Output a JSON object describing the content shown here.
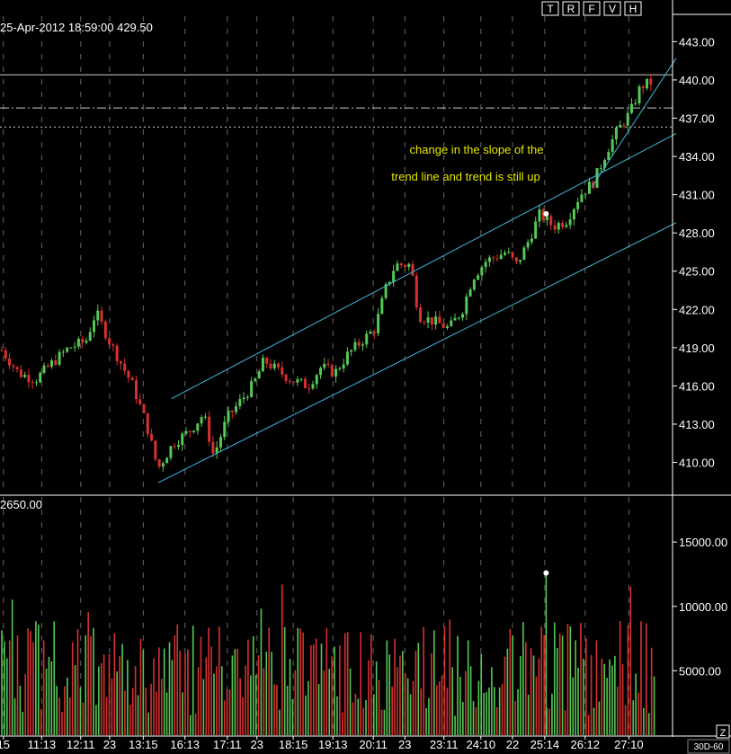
{
  "header": {
    "info": "25-Apr-2012 18:59:00 429.50",
    "buttons": [
      "T",
      "R",
      "F",
      "V",
      "H"
    ]
  },
  "annotation": {
    "line1": "change in the slope of the",
    "line2": "trend line and trend is still up"
  },
  "colors": {
    "background": "#000000",
    "up": "#55c855",
    "down": "#d83030",
    "trendline": "#3fb8d8",
    "annotation": "#e8e800",
    "text": "#ffffff",
    "grid": "#666666"
  },
  "chart_data": [
    {
      "type": "candlestick",
      "title": "",
      "ylim": [
        407.5,
        445.0
      ],
      "y_ticks": [
        "443.00",
        "440.00",
        "437.00",
        "434.00",
        "431.00",
        "428.00",
        "425.00",
        "422.00",
        "419.00",
        "416.00",
        "413.00",
        "410.00"
      ],
      "y_tick_values": [
        443,
        440,
        437,
        434,
        431,
        428,
        425,
        422,
        419,
        416,
        413,
        410
      ],
      "horizontal_levels": [
        {
          "value": 440.4,
          "style": "solid"
        },
        {
          "value": 437.8,
          "style": "dash-dot"
        },
        {
          "value": 436.3,
          "style": "dotted"
        }
      ],
      "last_marker_value": 429.5,
      "trend_lines": [
        {
          "name": "upper channel",
          "from": [
            0.255,
            415.0
          ],
          "to": [
            1.0,
            435.8
          ]
        },
        {
          "name": "lower channel",
          "from": [
            0.235,
            408.4
          ],
          "to": [
            1.0,
            428.8
          ]
        },
        {
          "name": "steep trend",
          "from": [
            0.88,
            431.6
          ],
          "to": [
            1.0,
            441.7
          ]
        }
      ],
      "price_anchors": [
        [
          0.0,
          418.8
        ],
        [
          0.025,
          417.0
        ],
        [
          0.05,
          416.5
        ],
        [
          0.075,
          417.8
        ],
        [
          0.1,
          419.0
        ],
        [
          0.125,
          419.5
        ],
        [
          0.14,
          421.8
        ],
        [
          0.16,
          419.5
        ],
        [
          0.175,
          418.0
        ],
        [
          0.195,
          416.0
        ],
        [
          0.215,
          413.0
        ],
        [
          0.232,
          409.5
        ],
        [
          0.255,
          411.5
        ],
        [
          0.28,
          412.5
        ],
        [
          0.3,
          413.8
        ],
        [
          0.315,
          410.5
        ],
        [
          0.335,
          413.5
        ],
        [
          0.355,
          414.8
        ],
        [
          0.375,
          416.2
        ],
        [
          0.39,
          418.0
        ],
        [
          0.41,
          417.2
        ],
        [
          0.43,
          416.5
        ],
        [
          0.455,
          416.0
        ],
        [
          0.475,
          417.5
        ],
        [
          0.495,
          417.0
        ],
        [
          0.515,
          418.5
        ],
        [
          0.535,
          419.5
        ],
        [
          0.555,
          420.5
        ],
        [
          0.57,
          423.5
        ],
        [
          0.585,
          425.5
        ],
        [
          0.608,
          425.5
        ],
        [
          0.62,
          421.5
        ],
        [
          0.645,
          421.0
        ],
        [
          0.665,
          420.5
        ],
        [
          0.685,
          422.0
        ],
        [
          0.7,
          424.5
        ],
        [
          0.72,
          425.8
        ],
        [
          0.75,
          426.5
        ],
        [
          0.765,
          425.5
        ],
        [
          0.78,
          427.0
        ],
        [
          0.8,
          429.5
        ],
        [
          0.82,
          428.5
        ],
        [
          0.84,
          429.0
        ],
        [
          0.86,
          431.0
        ],
        [
          0.88,
          432.0
        ],
        [
          0.9,
          434.5
        ],
        [
          0.915,
          436.0
        ],
        [
          0.935,
          437.5
        ],
        [
          0.95,
          439.5
        ],
        [
          0.965,
          439.8
        ]
      ]
    },
    {
      "type": "volume-bar",
      "title": "2650.00",
      "ylim": [
        0,
        18500
      ],
      "y_ticks": [
        "15000.00",
        "10000.00",
        "5000.00"
      ],
      "y_tick_values": [
        15000,
        10000,
        5000
      ],
      "peak_value": 12600
    }
  ],
  "x_axis": {
    "ticks": [
      "15",
      "11:13",
      "12:11",
      "23",
      "13:15",
      "16:13",
      "17:11",
      "23",
      "18:15",
      "19:13",
      "20:11",
      "23",
      "23:11",
      "24:10",
      "22",
      "25:14",
      "26:12",
      "27:10"
    ],
    "tick_positions": [
      0.005,
      0.062,
      0.12,
      0.163,
      0.213,
      0.275,
      0.338,
      0.382,
      0.436,
      0.495,
      0.555,
      0.602,
      0.66,
      0.715,
      0.762,
      0.81,
      0.87,
      0.935
    ]
  },
  "period_label": "30D-60",
  "corner_label": "Z"
}
